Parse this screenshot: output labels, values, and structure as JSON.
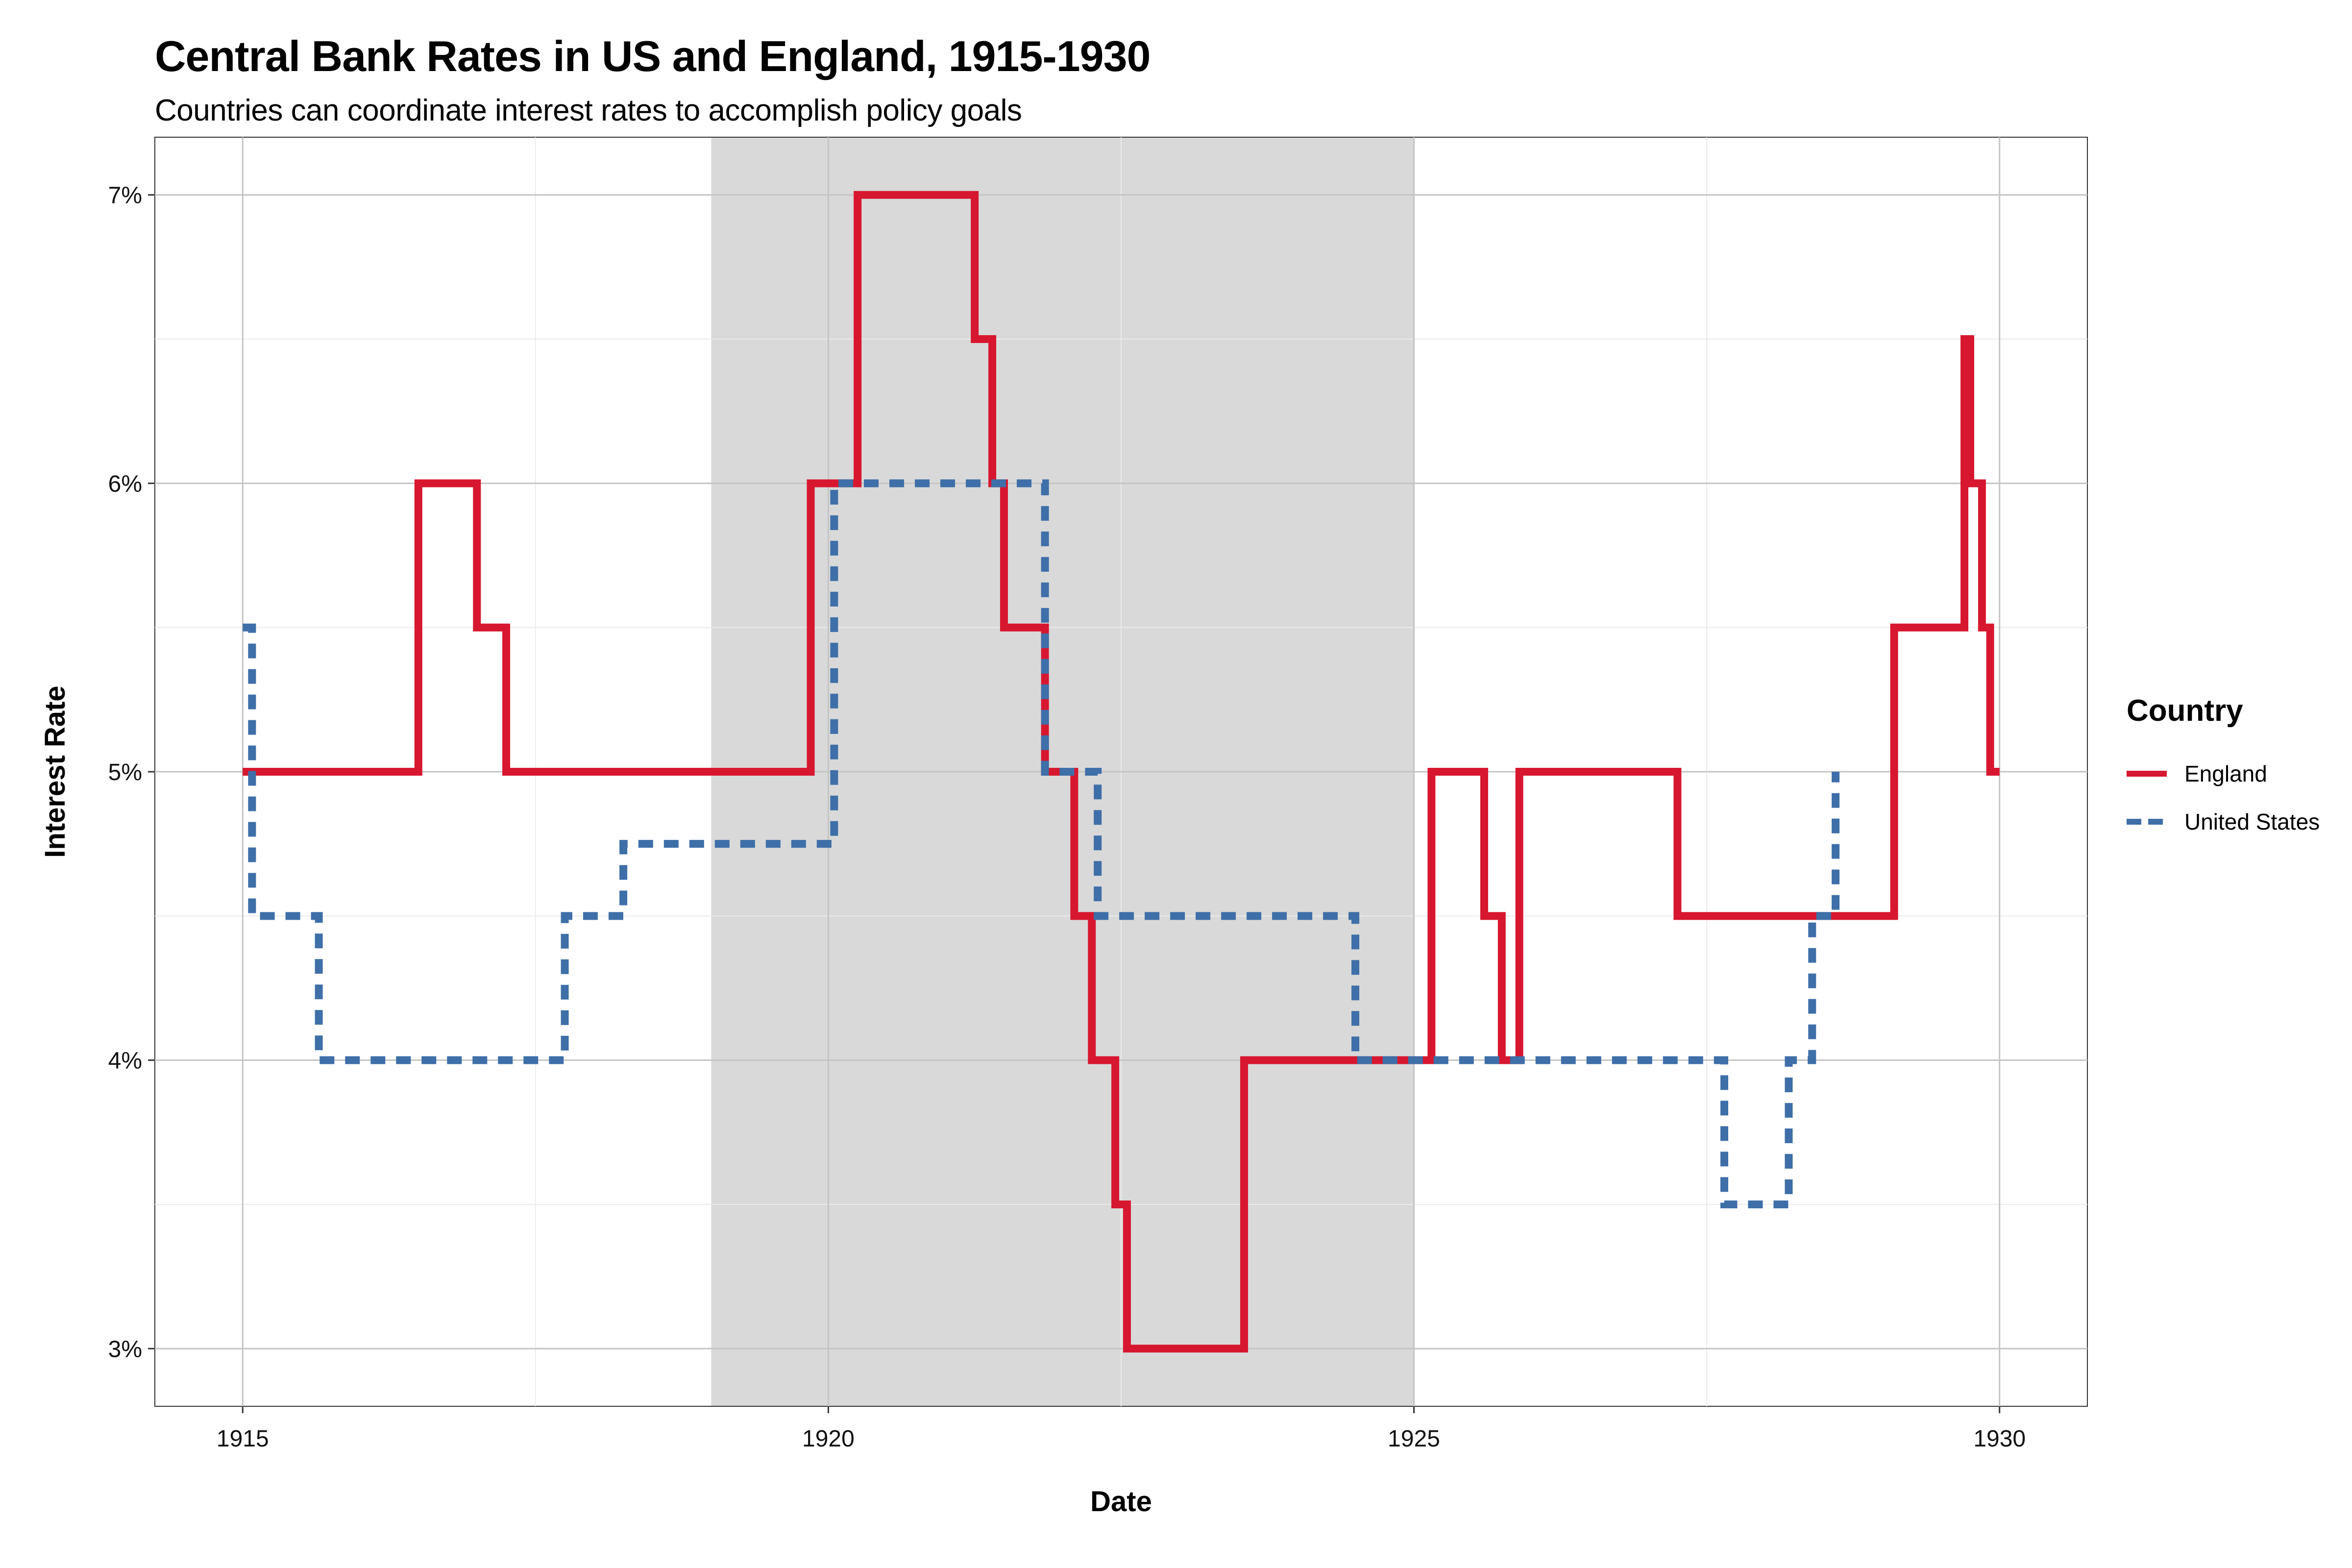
{
  "title": "Central Bank Rates in US and England, 1915-1930",
  "subtitle": "Countries can coordinate interest rates to accomplish policy goals",
  "legend": {
    "title": "Country",
    "placement": "right",
    "items": [
      {
        "label": "England",
        "color": "#D7172F",
        "style": "solid"
      },
      {
        "label": "United States",
        "color": "#3E6FA8",
        "style": "dashed"
      }
    ]
  },
  "chart_data": {
    "type": "line",
    "title": "Central Bank Rates in US and England, 1915-1930",
    "subtitle": "Countries can coordinate interest rates to accomplish policy goals",
    "xlabel": "Date",
    "ylabel": "Interest Rate",
    "xlim": [
      1914.25,
      1930.75
    ],
    "ylim": [
      2.8,
      7.2
    ],
    "x_ticks": [
      1915,
      1920,
      1925,
      1930
    ],
    "y_ticks": [
      3,
      4,
      5,
      6,
      7
    ],
    "y_tick_labels": [
      "3%",
      "4%",
      "5%",
      "6%",
      "7%"
    ],
    "grid": true,
    "shaded_region": {
      "x": [
        1919.0,
        1925.0
      ],
      "color": "#D9D9D9"
    },
    "series": [
      {
        "name": "England",
        "color": "#D7172F",
        "style": "solid",
        "step": true,
        "points": [
          [
            1915.0,
            5.0
          ],
          [
            1916.5,
            6.0
          ],
          [
            1917.0,
            5.5
          ],
          [
            1917.25,
            5.0
          ],
          [
            1919.85,
            6.0
          ],
          [
            1920.25,
            7.0
          ],
          [
            1921.25,
            6.5
          ],
          [
            1921.4,
            6.0
          ],
          [
            1921.5,
            5.5
          ],
          [
            1921.85,
            5.0
          ],
          [
            1922.1,
            4.5
          ],
          [
            1922.25,
            4.0
          ],
          [
            1922.45,
            3.5
          ],
          [
            1922.55,
            3.0
          ],
          [
            1923.55,
            4.0
          ],
          [
            1925.15,
            5.0
          ],
          [
            1925.6,
            4.5
          ],
          [
            1925.75,
            4.0
          ],
          [
            1925.9,
            5.0
          ],
          [
            1927.25,
            4.5
          ],
          [
            1929.1,
            5.5
          ],
          [
            1929.7,
            6.5
          ],
          [
            1929.75,
            6.0
          ],
          [
            1929.85,
            5.5
          ],
          [
            1929.92,
            5.0
          ],
          [
            1930.0,
            5.0
          ]
        ]
      },
      {
        "name": "United States",
        "color": "#3E6FA8",
        "style": "dashed",
        "step": true,
        "points": [
          [
            1915.0,
            5.5
          ],
          [
            1915.08,
            4.5
          ],
          [
            1915.65,
            4.0
          ],
          [
            1917.75,
            4.5
          ],
          [
            1918.25,
            4.75
          ],
          [
            1920.05,
            6.0
          ],
          [
            1921.85,
            5.0
          ],
          [
            1922.3,
            4.5
          ],
          [
            1924.5,
            4.0
          ],
          [
            1927.65,
            3.5
          ],
          [
            1928.2,
            4.0
          ],
          [
            1928.4,
            4.5
          ],
          [
            1928.6,
            5.0
          ]
        ]
      }
    ]
  }
}
